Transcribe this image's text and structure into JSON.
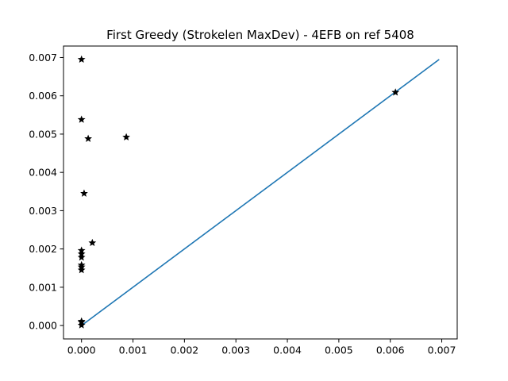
{
  "chart_data": {
    "type": "scatter",
    "title": "First Greedy (Strokelen MaxDev) - 4EFB on ref 5408",
    "xlabel": "",
    "ylabel": "",
    "xlim": [
      -0.00035,
      0.0073
    ],
    "ylim": [
      -0.00035,
      0.0073
    ],
    "x_ticks": [
      0.0,
      0.001,
      0.002,
      0.003,
      0.004,
      0.005,
      0.006,
      0.007
    ],
    "y_ticks": [
      0.0,
      0.001,
      0.002,
      0.003,
      0.004,
      0.005,
      0.006,
      0.007
    ],
    "x_tick_labels": [
      "0.000",
      "0.001",
      "0.002",
      "0.003",
      "0.004",
      "0.005",
      "0.006",
      "0.007"
    ],
    "y_tick_labels": [
      "0.000",
      "0.001",
      "0.002",
      "0.003",
      "0.004",
      "0.005",
      "0.006",
      "0.007"
    ],
    "grid": false,
    "series": [
      {
        "type": "scatter",
        "marker": "star",
        "color": "#000000",
        "points": [
          [
            0.0,
            0.00695
          ],
          [
            0.0,
            0.00538
          ],
          [
            0.00013,
            0.00488
          ],
          [
            0.00087,
            0.00492
          ],
          [
            5e-05,
            0.00345
          ],
          [
            0.00021,
            0.00216
          ],
          [
            0.0,
            0.00196
          ],
          [
            0.0,
            0.00187
          ],
          [
            0.0,
            0.00178
          ],
          [
            0.0,
            0.00158
          ],
          [
            0.0,
            0.00153
          ],
          [
            0.0,
            0.00145
          ],
          [
            0.0,
            0.00011
          ],
          [
            0.0,
            9e-05
          ],
          [
            0.0,
            1e-05
          ],
          [
            0.0061,
            0.00609
          ]
        ]
      },
      {
        "type": "line",
        "color": "#1f77b4",
        "points": [
          [
            0.0,
            0.0
          ],
          [
            0.00695,
            0.00695
          ]
        ]
      }
    ]
  }
}
